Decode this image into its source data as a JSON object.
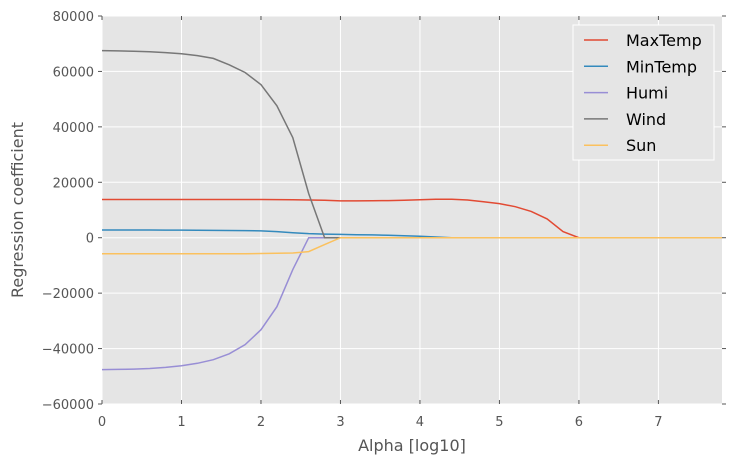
{
  "chart_data": {
    "type": "line",
    "title": "",
    "xlabel": "Alpha [log10]",
    "ylabel": "Regression coefficient",
    "xlim": [
      0,
      7.8
    ],
    "ylim": [
      -60000,
      80000
    ],
    "xticks": [
      0,
      1,
      2,
      3,
      4,
      5,
      6,
      7
    ],
    "yticks": [
      -60000,
      -40000,
      -20000,
      0,
      20000,
      40000,
      60000,
      80000
    ],
    "xtick_labels": [
      "0",
      "1",
      "2",
      "3",
      "4",
      "5",
      "6",
      "7"
    ],
    "ytick_labels": [
      "−60000",
      "−40000",
      "−20000",
      "0",
      "20000",
      "40000",
      "60000",
      "80000"
    ],
    "grid": true,
    "legend_position": "upper right",
    "x": [
      0,
      0.2,
      0.4,
      0.6,
      0.8,
      1.0,
      1.2,
      1.4,
      1.6,
      1.8,
      2.0,
      2.2,
      2.4,
      2.6,
      2.8,
      3.0,
      3.2,
      3.4,
      3.6,
      3.8,
      4.0,
      4.2,
      4.4,
      4.6,
      4.8,
      5.0,
      5.2,
      5.4,
      5.6,
      5.8,
      6.0,
      6.2,
      6.4,
      6.6,
      6.8,
      7.0,
      7.2,
      7.4,
      7.6,
      7.8
    ],
    "series": [
      {
        "name": "MaxTemp",
        "color": "#E24A33",
        "values": [
          13800,
          13800,
          13800,
          13800,
          13800,
          13800,
          13800,
          13800,
          13800,
          13800,
          13800,
          13750,
          13700,
          13600,
          13500,
          13300,
          13300,
          13350,
          13400,
          13500,
          13700,
          13850,
          13900,
          13600,
          13000,
          12300,
          11200,
          9500,
          6800,
          2200,
          0,
          0,
          0,
          0,
          0,
          0,
          0,
          0,
          0,
          0
        ]
      },
      {
        "name": "MinTemp",
        "color": "#348ABD",
        "values": [
          2800,
          2800,
          2800,
          2780,
          2760,
          2740,
          2700,
          2650,
          2600,
          2550,
          2450,
          2200,
          1800,
          1500,
          1300,
          1200,
          1100,
          1000,
          900,
          700,
          500,
          250,
          0,
          0,
          0,
          0,
          0,
          0,
          0,
          0,
          0,
          0,
          0,
          0,
          0,
          0,
          0,
          0,
          0,
          0
        ]
      },
      {
        "name": "Humi",
        "color": "#988ED5",
        "values": [
          -47600,
          -47500,
          -47400,
          -47200,
          -46800,
          -46200,
          -45300,
          -44000,
          -41900,
          -38600,
          -33200,
          -24900,
          -11500,
          0,
          0,
          0,
          0,
          0,
          0,
          0,
          0,
          0,
          0,
          0,
          0,
          0,
          0,
          0,
          0,
          0,
          0,
          0,
          0,
          0,
          0,
          0,
          0,
          0,
          0,
          0
        ]
      },
      {
        "name": "Wind",
        "color": "#777777",
        "values": [
          67500,
          67400,
          67300,
          67100,
          66800,
          66400,
          65700,
          64700,
          62400,
          59600,
          55200,
          47600,
          36100,
          15900,
          0,
          0,
          0,
          0,
          0,
          0,
          0,
          0,
          0,
          0,
          0,
          0,
          0,
          0,
          0,
          0,
          0,
          0,
          0,
          0,
          0,
          0,
          0,
          0,
          0,
          0
        ]
      },
      {
        "name": "Sun",
        "color": "#FBC15E",
        "values": [
          -5800,
          -5800,
          -5800,
          -5800,
          -5800,
          -5800,
          -5800,
          -5800,
          -5800,
          -5800,
          -5700,
          -5600,
          -5500,
          -5000,
          -2500,
          0,
          0,
          0,
          0,
          0,
          0,
          0,
          0,
          0,
          0,
          0,
          0,
          0,
          0,
          0,
          0,
          0,
          0,
          0,
          0,
          0,
          0,
          0,
          0,
          0
        ]
      }
    ]
  },
  "style": {
    "plot_background": "#E5E5E5",
    "grid_color": "#FFFFFF",
    "text_color": "#555555"
  }
}
